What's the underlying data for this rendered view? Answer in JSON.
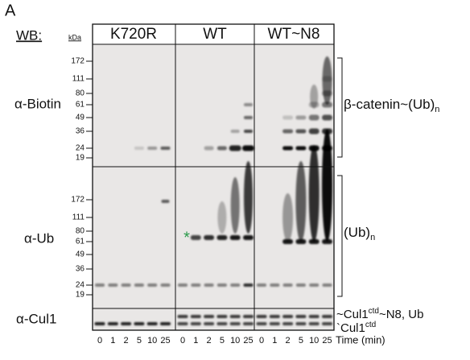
{
  "panel_label": "A",
  "wb_label": "WB:",
  "kda_label": "kDa",
  "lanes": [
    "K720R",
    "WT",
    "WT~N8"
  ],
  "rows": [
    {
      "label": "α-Biotin",
      "markers": [
        "172",
        "111",
        "80",
        "61",
        "49",
        "36",
        "24",
        "19"
      ],
      "annotation": {
        "text": "β-catenin~(Ub)",
        "sub": "n"
      }
    },
    {
      "label": "α-Ub",
      "markers": [
        "172",
        "111",
        "80",
        "61",
        "49",
        "36",
        "24",
        "19"
      ],
      "annotation": {
        "text": "(Ub)",
        "sub": "n"
      }
    },
    {
      "label": "α-Cul1"
    }
  ],
  "cul1_labels": [
    {
      "pre": "Cul1",
      "sup": "ctd",
      "post": "~N8, Ub"
    },
    {
      "pre": "Cul1",
      "sup": "ctd"
    }
  ],
  "asterisk": "*",
  "time_points": [
    "0",
    "1",
    "2",
    "5",
    "10",
    "25"
  ],
  "time_label": "Time (min)"
}
